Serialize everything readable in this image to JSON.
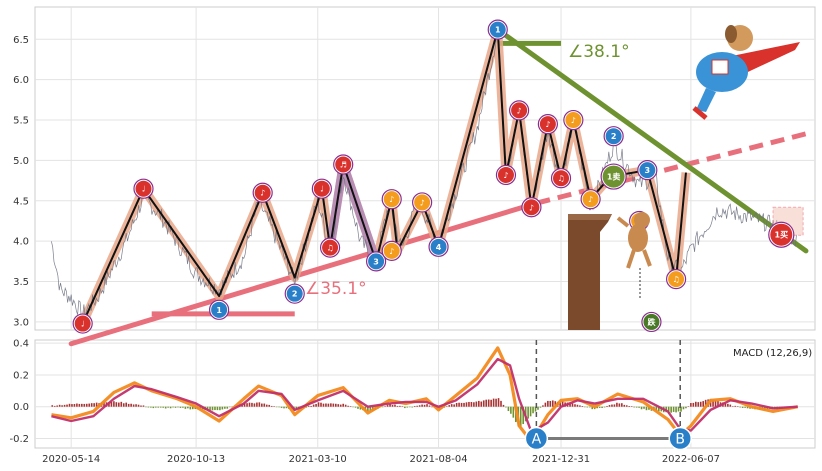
{
  "chart_data": [
    {
      "type": "line",
      "panel": "price",
      "x_ticks": [
        "2020-05-14",
        "2020-10-13",
        "2021-03-10",
        "2021-08-04",
        "2021-12-31",
        "2022-06-07"
      ],
      "y_ticks": [
        "3.0",
        "3.5",
        "4.0",
        "4.5",
        "5.0",
        "5.5",
        "6.0",
        "6.5"
      ],
      "ylim": [
        2.9,
        6.9
      ],
      "grid": true,
      "price_series": {
        "name": "",
        "color": "#6b7080",
        "points": [
          [
            "2020-04-20",
            4.0
          ],
          [
            "2020-05-01",
            3.4
          ],
          [
            "2020-05-14",
            3.3
          ],
          [
            "2020-05-28",
            3.1
          ],
          [
            "2020-06-15",
            3.3
          ],
          [
            "2020-07-20",
            4.0
          ],
          [
            "2020-08-10",
            4.55
          ],
          [
            "2020-09-01",
            4.3
          ],
          [
            "2020-09-25",
            3.9
          ],
          [
            "2020-10-13",
            3.6
          ],
          [
            "2020-11-10",
            3.4
          ],
          [
            "2020-12-10",
            3.8
          ],
          [
            "2020-12-28",
            4.5
          ],
          [
            "2021-01-20",
            4.0
          ],
          [
            "2021-02-10",
            3.5
          ],
          [
            "2021-03-10",
            4.5
          ],
          [
            "2021-03-25",
            3.9
          ],
          [
            "2021-04-10",
            4.85
          ],
          [
            "2021-05-01",
            4.0
          ],
          [
            "2021-05-20",
            3.75
          ],
          [
            "2021-06-05",
            4.5
          ],
          [
            "2021-06-20",
            3.9
          ],
          [
            "2021-07-10",
            4.5
          ],
          [
            "2021-08-04",
            4.0
          ],
          [
            "2021-08-25",
            4.6
          ],
          [
            "2021-09-20",
            5.4
          ],
          [
            "2021-10-15",
            6.6
          ],
          [
            "2021-10-25",
            4.8
          ],
          [
            "2021-11-10",
            5.6
          ],
          [
            "2021-11-25",
            4.4
          ],
          [
            "2021-12-15",
            5.4
          ],
          [
            "2021-12-31",
            4.7
          ],
          [
            "2022-01-15",
            5.5
          ],
          [
            "2022-02-05",
            4.4
          ],
          [
            "2022-03-05",
            5.2
          ],
          [
            "2022-04-05",
            4.7
          ],
          [
            "2022-04-25",
            4.8
          ],
          [
            "2022-05-10",
            3.8
          ],
          [
            "2022-05-25",
            3.6
          ],
          [
            "2022-06-07",
            3.9
          ],
          [
            "2022-07-10",
            4.4
          ],
          [
            "2022-08-15",
            4.3
          ],
          [
            "2022-09-15",
            4.2
          ],
          [
            "2022-10-15",
            4.0
          ]
        ]
      },
      "wave_path": [
        [
          "2020-05-28",
          2.98
        ],
        [
          "2020-08-10",
          4.65
        ],
        [
          "2020-11-10",
          3.32
        ],
        [
          "2021-01-02",
          4.6
        ],
        [
          "2021-02-10",
          3.55
        ],
        [
          "2021-03-15",
          4.65
        ],
        [
          "2021-03-25",
          3.92
        ],
        [
          "2021-04-10",
          4.95
        ],
        [
          "2021-05-20",
          3.75
        ],
        [
          "2021-06-08",
          4.52
        ],
        [
          "2021-06-15",
          3.88
        ],
        [
          "2021-07-15",
          4.48
        ],
        [
          "2021-08-04",
          3.93
        ],
        [
          "2021-10-15",
          6.62
        ],
        [
          "2021-10-25",
          4.82
        ],
        [
          "2021-11-10",
          5.62
        ],
        [
          "2021-11-25",
          4.42
        ],
        [
          "2021-12-15",
          5.45
        ],
        [
          "2021-12-31",
          4.78
        ],
        [
          "2022-01-15",
          5.5
        ],
        [
          "2022-02-05",
          4.52
        ],
        [
          "2022-03-01",
          4.8
        ],
        [
          "2022-04-15",
          4.88
        ],
        [
          "2022-05-20",
          3.53
        ],
        [
          "2022-06-01",
          4.85
        ]
      ],
      "support_line": {
        "from": [
          "2020-05-14",
          2.73
        ],
        "to": [
          "2022-10-25",
          5.33
        ],
        "color": "#e8707c",
        "angle_label": "∠35.1°"
      },
      "resistance_line": {
        "from": [
          "2021-10-15",
          6.62
        ],
        "to": [
          "2022-10-25",
          3.88
        ],
        "color": "#6e9230",
        "angle_label": "∠38.1°"
      },
      "support_base": {
        "from": [
          "2020-08-20",
          3.1
        ],
        "to": [
          "2021-02-10",
          3.1
        ]
      },
      "resistance_base": {
        "from": [
          "2021-10-15",
          6.45
        ],
        "to": [
          "2021-12-31",
          6.45
        ]
      },
      "signals": [
        {
          "date": "2020-05-28",
          "value": 2.98,
          "label": "♩",
          "color": "#d9312b"
        },
        {
          "date": "2020-08-10",
          "value": 4.65,
          "label": "♩",
          "color": "#d9312b"
        },
        {
          "date": "2020-11-10",
          "value": 3.15,
          "label": "1",
          "color": "#2a7fc9"
        },
        {
          "date": "2021-01-02",
          "value": 4.6,
          "label": "♪",
          "color": "#d9312b"
        },
        {
          "date": "2021-02-10",
          "value": 3.35,
          "label": "2",
          "color": "#2a7fc9"
        },
        {
          "date": "2021-03-15",
          "value": 4.65,
          "label": "♩",
          "color": "#d9312b"
        },
        {
          "date": "2021-03-25",
          "value": 3.92,
          "label": "♫",
          "color": "#d9312b"
        },
        {
          "date": "2021-04-10",
          "value": 4.95,
          "label": "♬",
          "color": "#d9312b"
        },
        {
          "date": "2021-05-20",
          "value": 3.75,
          "label": "3",
          "color": "#2a7fc9"
        },
        {
          "date": "2021-06-08",
          "value": 4.52,
          "label": "♪",
          "color": "#f39c1e"
        },
        {
          "date": "2021-06-08",
          "value": 3.88,
          "label": "♪",
          "color": "#f39c1e"
        },
        {
          "date": "2021-07-15",
          "value": 4.48,
          "label": "♪",
          "color": "#f39c1e"
        },
        {
          "date": "2021-08-04",
          "value": 3.93,
          "label": "4",
          "color": "#2a7fc9"
        },
        {
          "date": "2021-10-15",
          "value": 6.62,
          "label": "1",
          "color": "#2a7fc9"
        },
        {
          "date": "2021-10-25",
          "value": 4.82,
          "label": "♪",
          "color": "#d9312b"
        },
        {
          "date": "2021-11-10",
          "value": 5.62,
          "label": "♪",
          "color": "#d9312b"
        },
        {
          "date": "2021-11-25",
          "value": 4.42,
          "label": "♪",
          "color": "#d9312b"
        },
        {
          "date": "2021-12-15",
          "value": 5.45,
          "label": "♪",
          "color": "#d9312b"
        },
        {
          "date": "2021-12-31",
          "value": 4.78,
          "label": "♫",
          "color": "#d9312b"
        },
        {
          "date": "2022-01-15",
          "value": 5.5,
          "label": "♪",
          "color": "#f39c1e"
        },
        {
          "date": "2022-02-05",
          "value": 4.52,
          "label": "♪",
          "color": "#f39c1e"
        },
        {
          "date": "2022-03-05",
          "value": 5.3,
          "label": "2",
          "color": "#2a7fc9"
        },
        {
          "date": "2022-03-05",
          "value": 4.8,
          "label": "1卖",
          "color": "#6e9230"
        },
        {
          "date": "2022-04-15",
          "value": 4.88,
          "label": "3",
          "color": "#2a7fc9"
        },
        {
          "date": "2022-04-05",
          "value": 4.25,
          "label": "♪",
          "color": "#f39c1e"
        },
        {
          "date": "2022-05-20",
          "value": 3.53,
          "label": "♫",
          "color": "#f39c1e"
        },
        {
          "date": "2022-09-25",
          "value": 4.08,
          "label": "1买",
          "color": "#d9312b"
        },
        {
          "date": "2022-04-20",
          "value": 3.0,
          "label": "跌",
          "color": "#4a7a28"
        }
      ],
      "colors": {
        "wave_black": "#111111",
        "wave_band": "#e9a88a",
        "wave_band_purple": "#b48ab8",
        "support": "#e8707c",
        "resistance": "#6e9230"
      }
    },
    {
      "type": "line",
      "panel": "macd",
      "label": "MACD (12,26,9)",
      "y_ticks": [
        "-0.2",
        "0.0",
        "0.2",
        "0.4"
      ],
      "ylim": [
        -0.26,
        0.42
      ],
      "series": [
        {
          "name": "",
          "color": "#f28a1e",
          "points": [
            [
              "2020-04-20",
              -0.05
            ],
            [
              "2020-05-14",
              -0.07
            ],
            [
              "2020-06-10",
              -0.03
            ],
            [
              "2020-07-05",
              0.09
            ],
            [
              "2020-07-30",
              0.15
            ],
            [
              "2020-08-20",
              0.1
            ],
            [
              "2020-09-20",
              0.05
            ],
            [
              "2020-10-13",
              0.0
            ],
            [
              "2020-11-10",
              -0.09
            ],
            [
              "2020-12-10",
              0.05
            ],
            [
              "2020-12-28",
              0.13
            ],
            [
              "2021-01-25",
              0.07
            ],
            [
              "2021-02-10",
              -0.05
            ],
            [
              "2021-03-10",
              0.07
            ],
            [
              "2021-04-10",
              0.12
            ],
            [
              "2021-05-10",
              -0.04
            ],
            [
              "2021-06-05",
              0.04
            ],
            [
              "2021-06-25",
              0.02
            ],
            [
              "2021-07-20",
              0.05
            ],
            [
              "2021-08-04",
              -0.02
            ],
            [
              "2021-08-25",
              0.07
            ],
            [
              "2021-09-20",
              0.18
            ],
            [
              "2021-10-15",
              0.37
            ],
            [
              "2021-10-30",
              0.2
            ],
            [
              "2021-11-10",
              -0.12
            ],
            [
              "2021-11-25",
              -0.22
            ],
            [
              "2021-12-15",
              -0.05
            ],
            [
              "2021-12-31",
              0.04
            ],
            [
              "2022-01-20",
              0.05
            ],
            [
              "2022-02-10",
              0.0
            ],
            [
              "2022-03-10",
              0.08
            ],
            [
              "2022-04-10",
              0.03
            ],
            [
              "2022-05-10",
              -0.08
            ],
            [
              "2022-05-25",
              -0.18
            ],
            [
              "2022-06-07",
              -0.12
            ],
            [
              "2022-07-01",
              0.04
            ],
            [
              "2022-07-25",
              0.05
            ],
            [
              "2022-08-20",
              0.0
            ],
            [
              "2022-09-15",
              -0.03
            ],
            [
              "2022-10-15",
              0.0
            ]
          ]
        },
        {
          "name": "",
          "color": "#c0306a",
          "points": [
            [
              "2020-04-20",
              -0.06
            ],
            [
              "2020-05-14",
              -0.09
            ],
            [
              "2020-06-10",
              -0.06
            ],
            [
              "2020-07-05",
              0.05
            ],
            [
              "2020-07-30",
              0.13
            ],
            [
              "2020-08-20",
              0.11
            ],
            [
              "2020-09-20",
              0.06
            ],
            [
              "2020-10-13",
              0.02
            ],
            [
              "2020-11-10",
              -0.06
            ],
            [
              "2020-12-10",
              0.02
            ],
            [
              "2020-12-28",
              0.1
            ],
            [
              "2021-01-25",
              0.08
            ],
            [
              "2021-02-10",
              -0.02
            ],
            [
              "2021-03-10",
              0.04
            ],
            [
              "2021-04-10",
              0.1
            ],
            [
              "2021-05-10",
              0.0
            ],
            [
              "2021-06-05",
              0.02
            ],
            [
              "2021-06-25",
              0.03
            ],
            [
              "2021-07-20",
              0.03
            ],
            [
              "2021-08-04",
              0.0
            ],
            [
              "2021-08-25",
              0.04
            ],
            [
              "2021-09-20",
              0.14
            ],
            [
              "2021-10-15",
              0.3
            ],
            [
              "2021-10-30",
              0.26
            ],
            [
              "2021-11-10",
              0.05
            ],
            [
              "2021-11-25",
              -0.16
            ],
            [
              "2021-12-15",
              -0.1
            ],
            [
              "2021-12-31",
              0.0
            ],
            [
              "2022-01-20",
              0.04
            ],
            [
              "2022-02-10",
              0.02
            ],
            [
              "2022-03-10",
              0.05
            ],
            [
              "2022-04-10",
              0.05
            ],
            [
              "2022-05-10",
              -0.03
            ],
            [
              "2022-05-25",
              -0.14
            ],
            [
              "2022-06-07",
              -0.15
            ],
            [
              "2022-07-01",
              -0.02
            ],
            [
              "2022-07-25",
              0.04
            ],
            [
              "2022-08-20",
              0.02
            ],
            [
              "2022-09-15",
              -0.01
            ],
            [
              "2022-10-15",
              0.0
            ]
          ]
        }
      ],
      "markers": [
        {
          "date": "2021-12-01",
          "value": -0.2,
          "label": "A",
          "color": "#2a7fc9"
        },
        {
          "date": "2022-05-25",
          "value": -0.2,
          "label": "B",
          "color": "#2a7fc9"
        }
      ]
    }
  ]
}
